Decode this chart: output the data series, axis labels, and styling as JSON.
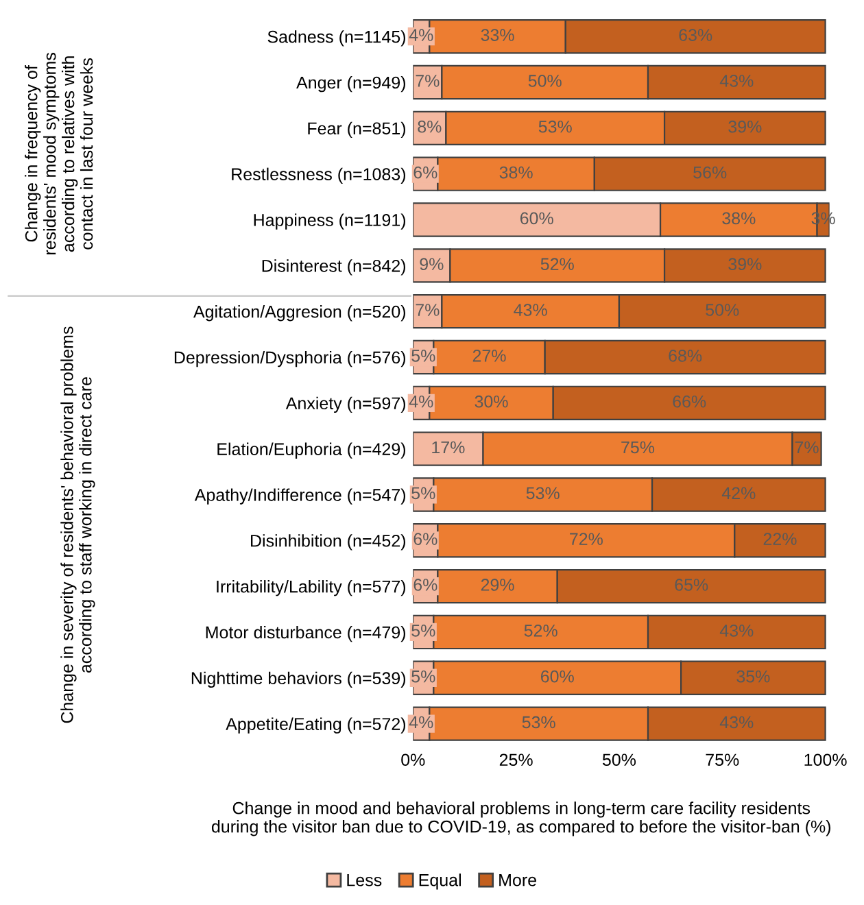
{
  "chart_data": {
    "type": "bar",
    "orientation": "horizontal",
    "stacked": true,
    "xlabel": "Change in mood and behavioral problems in long-term care facility residents\nduring the visitor ban due to COVID-19, as compared to before the visitor-ban (%)",
    "categories": [
      "Sadness (n=1145)",
      "Anger (n=949)",
      "Fear (n=851)",
      "Restlessness (n=1083)",
      "Happiness (n=1191)",
      "Disinterest (n=842)",
      "Agitation/Aggresion (n=520)",
      "Depression/Dysphoria (n=576)",
      "Anxiety (n=597)",
      "Elation/Euphoria (n=429)",
      "Apathy/Indifference (n=547)",
      "Disinhibition (n=452)",
      "Irritability/Lability (n=577)",
      "Motor disturbance (n=479)",
      "Nighttime behaviors (n=539)",
      "Appetite/Eating (n=572)"
    ],
    "series": [
      {
        "name": "Less",
        "color": "#f4b9a1",
        "values": [
          4,
          7,
          8,
          6,
          60,
          9,
          7,
          5,
          4,
          17,
          5,
          6,
          6,
          5,
          5,
          4
        ],
        "value_labels": [
          "4%",
          "7%",
          "8%",
          "6%",
          "60%",
          "9%",
          "7%",
          "5%",
          "4%",
          "17%",
          "5%",
          "6%",
          "6%",
          "5%",
          "5%",
          "4%"
        ]
      },
      {
        "name": "Equal",
        "color": "#ed7d31",
        "values": [
          33,
          50,
          53,
          38,
          38,
          52,
          43,
          27,
          30,
          75,
          53,
          72,
          29,
          52,
          60,
          53
        ],
        "value_labels": [
          "33%",
          "50%",
          "53%",
          "38%",
          "38%",
          "52%",
          "43%",
          "27%",
          "30%",
          "75%",
          "53%",
          "72%",
          "29%",
          "52%",
          "60%",
          "53%"
        ]
      },
      {
        "name": "More",
        "color": "#c3601f",
        "values": [
          63,
          43,
          39,
          56,
          3,
          39,
          50,
          68,
          66,
          7,
          42,
          22,
          65,
          43,
          35,
          43
        ],
        "value_labels": [
          "63%",
          "43%",
          "39%",
          "56%",
          "3%",
          "39%",
          "50%",
          "68%",
          "66%",
          "7%",
          "42%",
          "22%",
          "65%",
          "43%",
          "35%",
          "43%"
        ]
      }
    ],
    "xlim": [
      0,
      101
    ],
    "xticks": [
      {
        "value": 0,
        "label": "0%"
      },
      {
        "value": 25,
        "label": "25%"
      },
      {
        "value": 50,
        "label": "50%"
      },
      {
        "value": 75,
        "label": "75%"
      },
      {
        "value": 100,
        "label": "100%"
      }
    ],
    "annotations": [
      "Change in frequency of\nresidents' mood symptoms\naccording to relatives with\ncontact in last four weeks",
      "Change in severity of residents' behavioral problems\naccording to staff working in direct care"
    ],
    "grid": false,
    "legend": "bottom"
  }
}
